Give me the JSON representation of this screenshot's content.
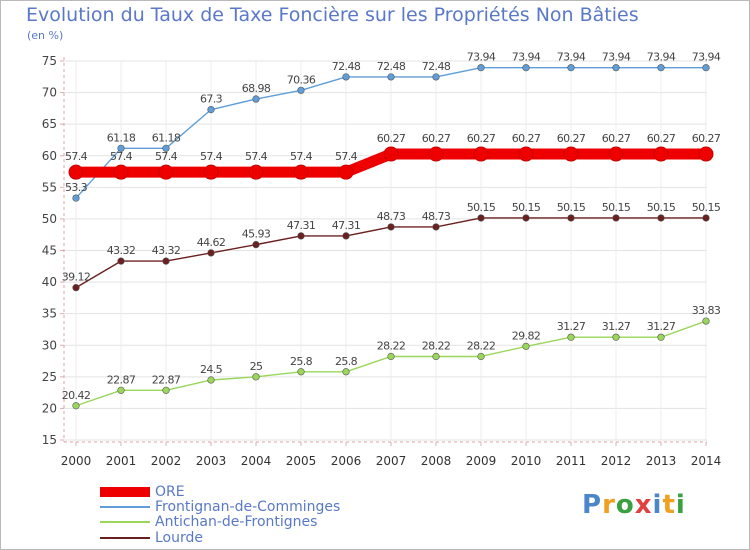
{
  "header": {
    "title": "Evolution du Taux de Taxe Foncière sur les Propriétés Non Bâties",
    "unit": "(en %)"
  },
  "logo": {
    "letters": [
      "P",
      "r",
      "o",
      "x",
      "i",
      "t",
      "i"
    ],
    "colors": [
      "#4a86c8",
      "#f0a020",
      "#3aa040",
      "#e04040",
      "#4a86c8",
      "#f0a020",
      "#3aa040"
    ]
  },
  "chart_data": {
    "type": "line",
    "title": "Evolution du Taux de Taxe Foncière sur les Propriétés Non Bâties",
    "ylabel": "(en %)",
    "x": [
      "2000",
      "2001",
      "2002",
      "2003",
      "2004",
      "2005",
      "2006",
      "2007",
      "2008",
      "2009",
      "2010",
      "2011",
      "2012",
      "2013",
      "2014"
    ],
    "ylim": [
      15,
      75
    ],
    "yticks": [
      15,
      20,
      25,
      30,
      35,
      40,
      45,
      50,
      55,
      60,
      65,
      70,
      75
    ],
    "grid": true,
    "legend_position": "bottom-left",
    "series": [
      {
        "name": "Frontignan-de-Comminges",
        "color": "#5f9ed8",
        "thick": false,
        "values": [
          53.3,
          61.18,
          61.18,
          67.3,
          68.98,
          70.36,
          72.48,
          72.48,
          72.48,
          73.94,
          73.94,
          73.94,
          73.94,
          73.94,
          73.94
        ],
        "labels": [
          "53.3",
          "61.18",
          "61.18",
          "67.3",
          "68.98",
          "70.36",
          "72.48",
          "72.48",
          "72.48",
          "73.94",
          "73.94",
          "73.94",
          "73.94",
          "73.94",
          "73.94"
        ]
      },
      {
        "name": "Lourde",
        "color": "#6b2020",
        "thick": false,
        "values": [
          39.12,
          43.32,
          43.32,
          44.62,
          45.93,
          47.31,
          47.31,
          48.73,
          48.73,
          50.15,
          50.15,
          50.15,
          50.15,
          50.15,
          50.15
        ],
        "labels": [
          "39.12",
          "43.32",
          "43.32",
          "44.62",
          "45.93",
          "47.31",
          "47.31",
          "48.73",
          "48.73",
          "50.15",
          "50.15",
          "50.15",
          "50.15",
          "50.15",
          "50.15"
        ]
      },
      {
        "name": "Antichan-de-Frontignes",
        "color": "#9ad65a",
        "thick": false,
        "values": [
          20.42,
          22.87,
          22.87,
          24.5,
          25,
          25.8,
          25.8,
          28.22,
          28.22,
          28.22,
          29.82,
          31.27,
          31.27,
          31.27,
          33.83
        ],
        "labels": [
          "20.42",
          "22.87",
          "22.87",
          "24.5",
          "25",
          "25.8",
          "25.8",
          "28.22",
          "28.22",
          "28.22",
          "29.82",
          "31.27",
          "31.27",
          "31.27",
          "33.83"
        ]
      },
      {
        "name": "ORE",
        "color": "#ee0000",
        "thick": true,
        "values": [
          57.4,
          57.4,
          57.4,
          57.4,
          57.4,
          57.4,
          57.4,
          60.27,
          60.27,
          60.27,
          60.27,
          60.27,
          60.27,
          60.27,
          60.27
        ],
        "labels": [
          "57.4",
          "57.4",
          "57.4",
          "57.4",
          "57.4",
          "57.4",
          "57.4",
          "60.27",
          "60.27",
          "60.27",
          "60.27",
          "60.27",
          "60.27",
          "60.27",
          "60.27"
        ]
      }
    ],
    "legend": [
      {
        "name": "ORE",
        "color": "#ee0000",
        "thick": true
      },
      {
        "name": "Frontignan-de-Comminges",
        "color": "#5f9ed8",
        "thick": false
      },
      {
        "name": "Antichan-de-Frontignes",
        "color": "#9ad65a",
        "thick": false
      },
      {
        "name": "Lourde",
        "color": "#6b2020",
        "thick": false
      }
    ]
  }
}
